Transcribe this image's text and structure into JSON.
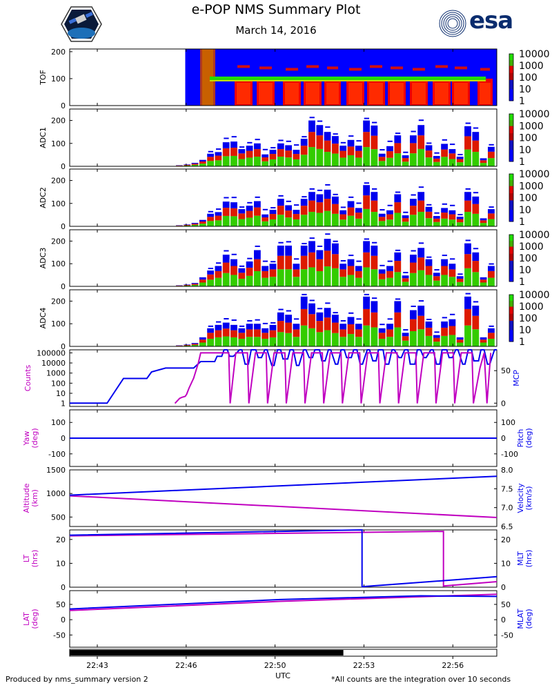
{
  "header": {
    "title": "e-POP NMS Summary Plot",
    "date": "March 14, 2016",
    "logo_right_text": "esa"
  },
  "footer": {
    "left": "Produced by nms_summary version 2",
    "right": "*All counts are the integration over 10 seconds",
    "xlabel": "UTC"
  },
  "colors": {
    "magenta": "#c000c0",
    "blue": "#0000ee",
    "cmap_blue": "#0000ff",
    "cmap_red": "#ee0000",
    "cmap_green": "#22dd00"
  },
  "chart_data": [
    {
      "type": "heatmap",
      "name": "tof",
      "ylabel": "TOF",
      "ylim": [
        0,
        210
      ],
      "yticks": [
        0,
        100,
        200
      ],
      "colorbar_ticks": [
        "10000",
        "1000",
        "100",
        "10",
        "1"
      ],
      "data_start_min": 24.7,
      "band_center": 100,
      "note": "Counts rise from blue background to a strong red/green band near mass 100 between 22:46 and 22:59"
    },
    {
      "type": "heatmap",
      "name": "adc1",
      "ylabel": "ADC1",
      "ylim": [
        0,
        250
      ],
      "yticks": [
        0,
        100,
        200
      ],
      "colorbar_ticks": [
        "10000",
        "1000",
        "100",
        "10",
        "1"
      ],
      "tops": [
        5,
        8,
        15,
        28,
        55,
        62,
        105,
        108,
        75,
        90,
        100,
        52,
        72,
        100,
        92,
        72,
        120,
        200,
        180,
        150,
        132,
        90,
        115,
        90,
        200,
        178,
        55,
        88,
        135,
        48,
        135,
        180,
        92,
        45,
        98,
        75,
        42,
        175,
        150,
        35,
        85,
        40
      ]
    },
    {
      "type": "heatmap",
      "name": "adc2",
      "ylabel": "ADC2",
      "ylim": [
        0,
        250
      ],
      "yticks": [
        0,
        100,
        200
      ],
      "colorbar_ticks": [
        "10000",
        "1000",
        "100",
        "10",
        "1"
      ],
      "tops": [
        5,
        8,
        15,
        28,
        55,
        62,
        108,
        105,
        75,
        90,
        110,
        52,
        72,
        120,
        92,
        72,
        120,
        150,
        140,
        160,
        130,
        70,
        110,
        80,
        180,
        150,
        55,
        70,
        140,
        48,
        120,
        150,
        85,
        45,
        80,
        70,
        42,
        150,
        130,
        35,
        75,
        40
      ]
    },
    {
      "type": "heatmap",
      "name": "adc3",
      "ylabel": "ADC3",
      "ylim": [
        0,
        250
      ],
      "yticks": [
        0,
        100,
        200
      ],
      "colorbar_ticks": [
        "10000",
        "1000",
        "100",
        "10",
        "1"
      ],
      "tops": [
        5,
        8,
        15,
        40,
        70,
        90,
        140,
        120,
        80,
        110,
        160,
        90,
        100,
        180,
        180,
        100,
        180,
        200,
        160,
        210,
        190,
        100,
        120,
        90,
        200,
        180,
        75,
        90,
        150,
        48,
        140,
        170,
        120,
        60,
        120,
        100,
        45,
        190,
        150,
        40,
        90,
        50
      ]
    },
    {
      "type": "heatmap",
      "name": "adc4",
      "ylabel": "ADC4",
      "ylim": [
        0,
        250
      ],
      "yticks": [
        0,
        100,
        200
      ],
      "colorbar_ticks": [
        "10000",
        "1000",
        "100",
        "10",
        "1"
      ],
      "tops": [
        5,
        8,
        15,
        40,
        80,
        95,
        105,
        95,
        80,
        100,
        100,
        80,
        95,
        150,
        140,
        100,
        220,
        190,
        150,
        170,
        140,
        100,
        130,
        100,
        220,
        200,
        80,
        100,
        200,
        60,
        160,
        180,
        110,
        50,
        110,
        120,
        40,
        220,
        180,
        40,
        80,
        60
      ]
    },
    {
      "type": "line",
      "name": "counts-mcp",
      "ylabel_left": "Counts",
      "ylabel_right": "MCP",
      "yticks_left": [
        "100000",
        "10000",
        "1000",
        "100",
        "10",
        "1"
      ],
      "ylim_left_log10": [
        -0.3,
        5.3
      ],
      "yticks_right": [
        0,
        50
      ],
      "ylim_right": [
        -5,
        82
      ],
      "series": [
        {
          "name": "MCP",
          "color": "blue",
          "axis": "right",
          "x": [
            0,
            8.0,
            11.5,
            16.5,
            17.5,
            20.5,
            26.5,
            28.0,
            31.0,
            31.5,
            32.5,
            33.0,
            33.7,
            34.2,
            35.0,
            36.3,
            36.8,
            37.5,
            38.2,
            38.8,
            39.8,
            40.3,
            41.0,
            41.7,
            42.2,
            43.2,
            43.7,
            44.4,
            45.1,
            45.6,
            46.6,
            47.1,
            47.8,
            48.5,
            49.0,
            50.0,
            50.5,
            51.2,
            51.9,
            52.4,
            53.4,
            53.9,
            54.6,
            55.3,
            55.8,
            56.8,
            57.3,
            58.0,
            58.7,
            59.2,
            60.2,
            60.7,
            61.4,
            62.1,
            62.6,
            63.6,
            64.1,
            64.8,
            65.5,
            66.0,
            67.0,
            67.5,
            68.2,
            68.9,
            69.4,
            70.4,
            70.9,
            71.6,
            72.3,
            72.8,
            73.8,
            74.3,
            75.0,
            75.7,
            76.2,
            77.2,
            77.7,
            78.4,
            79.1,
            79.6,
            80.6,
            81.1,
            81.8,
            82.5,
            83.0,
            84.0,
            84.5,
            85.2,
            85.9,
            86.4,
            87.4,
            87.9,
            88.6,
            89.3,
            89.8,
            90.8,
            91.3
          ],
          "y": [
            0,
            0,
            38,
            38,
            48,
            54,
            54,
            64,
            64,
            72,
            72,
            82,
            82,
            72,
            72,
            82,
            82,
            60,
            60,
            82,
            82,
            70,
            70,
            82,
            82,
            58,
            58,
            82,
            82,
            68,
            68,
            82,
            82,
            58,
            58,
            82,
            82,
            70,
            70,
            82,
            82,
            65,
            65,
            82,
            82,
            60,
            60,
            82,
            82,
            70,
            70,
            82,
            82,
            60,
            60,
            82,
            82,
            65,
            65,
            82,
            82,
            60,
            60,
            82,
            82,
            70,
            70,
            82,
            82,
            60,
            60,
            82,
            82,
            70,
            70,
            82,
            82,
            60,
            60,
            82,
            82,
            70,
            70,
            82,
            82,
            60,
            60,
            82,
            82,
            65,
            65,
            82,
            82,
            60,
            60,
            82,
            82
          ]
        },
        {
          "name": "Counts",
          "color": "magenta",
          "axis": "left",
          "x": [
            22.5,
            23.5,
            24.0,
            24.7,
            25.0,
            25.5,
            26.5,
            27.5,
            28.0,
            32.0,
            34.0,
            34.3,
            35.5,
            38.0,
            38.3,
            39.7,
            42.0,
            42.3,
            43.7,
            46.0,
            46.3,
            47.7,
            50.0,
            50.3,
            51.7,
            54.0,
            54.3,
            55.7,
            58.0,
            58.3,
            59.7,
            62.0,
            62.3,
            63.7,
            66.0,
            66.3,
            67.7,
            70.0,
            70.3,
            71.7,
            74.0,
            74.3,
            75.7,
            78.0,
            78.3,
            79.7,
            82.0,
            82.3,
            83.7,
            86.0,
            86.3,
            87.7,
            88.6,
            89.2,
            90.0
          ],
          "y_log10": [
            0.0,
            0.5,
            0.6,
            0.7,
            0.9,
            1.5,
            2.5,
            4.0,
            5.0,
            5.0,
            5.0,
            0.0,
            5.0,
            5.0,
            0.0,
            5.0,
            5.0,
            0.0,
            5.0,
            5.0,
            0.0,
            5.0,
            5.0,
            0.0,
            5.0,
            5.0,
            0.0,
            5.0,
            5.0,
            0.0,
            5.0,
            5.0,
            0.0,
            5.0,
            5.0,
            0.0,
            5.0,
            5.0,
            0.0,
            5.0,
            5.0,
            0.0,
            5.0,
            5.0,
            0.0,
            5.0,
            5.0,
            0.0,
            5.0,
            5.0,
            0.0,
            3.5,
            5.0,
            0.0,
            5.0
          ]
        }
      ]
    },
    {
      "type": "line",
      "name": "yaw-pitch",
      "ylabel_left": "Yaw\n(deg)",
      "ylabel_right": "Pitch\n(deg)",
      "yticks_left": [
        -100,
        0,
        100
      ],
      "yticks_right": [
        -100,
        0,
        100
      ],
      "ylim": [
        -180,
        180
      ],
      "series": [
        {
          "name": "Yaw",
          "color": "magenta",
          "x": [
            0,
            91.3
          ],
          "y": [
            0,
            0
          ]
        },
        {
          "name": "Pitch",
          "color": "blue",
          "x": [
            0,
            91.3
          ],
          "y": [
            0,
            0
          ]
        }
      ]
    },
    {
      "type": "line",
      "name": "altitude-velocity",
      "ylabel_left": "Altitude\n(km)",
      "ylabel_right": "Velocity\n(km/s)",
      "yticks_left": [
        500,
        1000,
        1500
      ],
      "ylim_left": [
        300,
        1500
      ],
      "yticks_right": [
        "6.5",
        "7.0",
        "7.5",
        "8.0"
      ],
      "ylim_right": [
        6.5,
        8.0
      ],
      "series": [
        {
          "name": "Altitude",
          "color": "magenta",
          "axis": "left",
          "x": [
            0,
            91.3
          ],
          "y": [
            950,
            490
          ]
        },
        {
          "name": "Velocity",
          "color": "blue",
          "axis": "right",
          "x": [
            0,
            91.3
          ],
          "y": [
            7.33,
            7.83
          ]
        }
      ]
    },
    {
      "type": "line",
      "name": "lt-mlt",
      "ylabel_left": "LT\n(hrs)",
      "ylabel_right": "MLT\n(hrs)",
      "yticks_left": [
        0,
        10,
        20
      ],
      "yticks_right": [
        0,
        10,
        20
      ],
      "ylim": [
        0,
        24
      ],
      "series": [
        {
          "name": "LT",
          "color": "magenta",
          "x": [
            0,
            79.9,
            79.9,
            91.3
          ],
          "y": [
            21.5,
            23.4,
            0.5,
            2.3
          ]
        },
        {
          "name": "MLT",
          "color": "blue",
          "x": [
            0,
            62.5,
            62.5,
            91.3
          ],
          "y": [
            21.8,
            24.0,
            0.2,
            4.4
          ]
        }
      ]
    },
    {
      "type": "line",
      "name": "lat-mlat",
      "ylabel_left": "LAT\n(deg)",
      "ylabel_right": "MLAT\n(deg)",
      "yticks_left": [
        -50,
        0,
        50
      ],
      "yticks_right": [
        -50,
        0,
        50
      ],
      "ylim": [
        -90,
        95
      ],
      "series": [
        {
          "name": "LAT",
          "color": "magenta",
          "x": [
            0,
            45,
            91.3
          ],
          "y": [
            30,
            60,
            83
          ]
        },
        {
          "name": "MLAT",
          "color": "blue",
          "x": [
            0,
            45,
            75,
            91.3
          ],
          "y": [
            35,
            66,
            78,
            76
          ]
        }
      ]
    },
    {
      "type": "bar",
      "name": "coverage-strip",
      "x_start_min": 0,
      "x_end_min": 58.5,
      "xlim_min": [
        0,
        91.3
      ],
      "xticks_min": [
        5.9,
        24.9,
        43.9,
        62.9,
        81.9
      ],
      "xtick_labels": [
        "22:43",
        "22:46",
        "22:50",
        "22:53",
        "22:56"
      ]
    }
  ]
}
